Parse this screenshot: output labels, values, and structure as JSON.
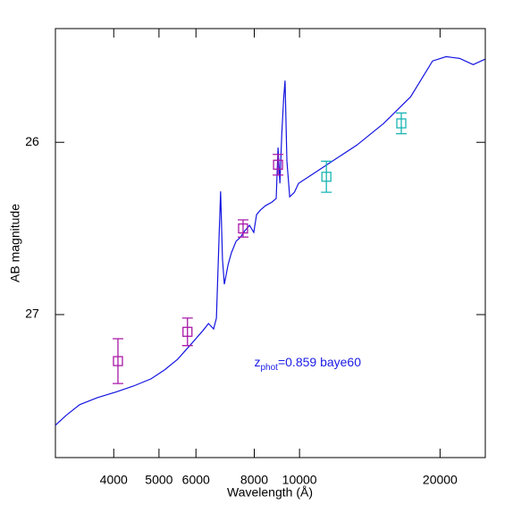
{
  "chart_data": {
    "type": "line",
    "xlabel": "Wavelength (Å)",
    "ylabel": "AB magnitude",
    "log_x": true,
    "xlim": [
      3000,
      25000
    ],
    "ylim": [
      27.83,
      25.34
    ],
    "xticks": [
      4000,
      5000,
      6000,
      8000,
      10000,
      20000
    ],
    "yticks": [
      26,
      27
    ],
    "annotation": {
      "text": "z",
      "subscript": "phot",
      "rest": "=0.859 baye60",
      "color": "#1a1ae6",
      "x": 8000,
      "y": 27.28
    },
    "line": {
      "color": "#1414e0",
      "x": [
        3000,
        3162,
        3381,
        3690,
        4027,
        4406,
        4808,
        5140,
        5483,
        5861,
        6209,
        6383,
        6546,
        6637,
        6730,
        6776,
        6839,
        6902,
        7031,
        7145,
        7311,
        7482,
        7638,
        7816,
        7980,
        8091,
        8241,
        8453,
        8730,
        8913,
        8995,
        9078,
        9162,
        9247,
        9311,
        9397,
        9528,
        9750,
        9954,
        10641,
        11614,
        13274,
        15136,
        17298,
        19275,
        20606,
        22029,
        23550,
        24946
      ],
      "values": [
        27.642,
        27.585,
        27.523,
        27.482,
        27.451,
        27.415,
        27.373,
        27.321,
        27.259,
        27.171,
        27.093,
        27.052,
        27.083,
        27.021,
        26.523,
        26.285,
        26.679,
        26.824,
        26.71,
        26.642,
        26.575,
        26.549,
        26.513,
        26.482,
        26.523,
        26.42,
        26.394,
        26.368,
        26.347,
        26.326,
        26.031,
        26.238,
        25.953,
        25.746,
        25.642,
        26.109,
        26.316,
        26.29,
        26.238,
        26.187,
        26.119,
        26.016,
        25.891,
        25.736,
        25.528,
        25.503,
        25.513,
        25.549,
        25.518
      ]
    },
    "points": [
      {
        "color": "#a818a8",
        "x": [
          4084,
          5754,
          7570,
          8995
        ],
        "values": [
          27.27,
          27.1,
          26.5,
          26.13
        ],
        "errors": [
          0.13,
          0.08,
          0.05,
          0.06
        ]
      },
      {
        "color": "#1ab4b4",
        "x": [
          11417,
          16520
        ],
        "values": [
          26.2,
          25.89
        ],
        "errors": [
          0.09,
          0.06
        ]
      }
    ]
  }
}
